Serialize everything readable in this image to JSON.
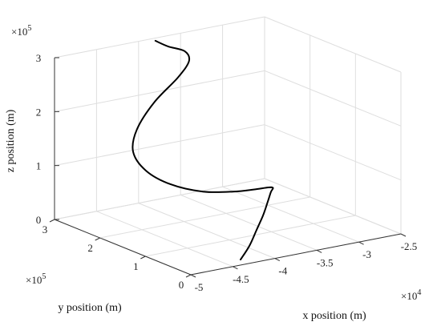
{
  "chart_data": {
    "type": "line3d",
    "xlabel": "x position (m)",
    "ylabel": "y position (m)",
    "zlabel": "z position (m)",
    "x_exponent": "×10",
    "x_exponent_power": "4",
    "y_exponent": "×10",
    "y_exponent_power": "5",
    "z_exponent": "×10",
    "z_exponent_power": "5",
    "x_ticks": [
      "-5",
      "-4.5",
      "-4",
      "-3.5",
      "-3",
      "-2.5"
    ],
    "y_ticks": [
      "0",
      "1",
      "2",
      "3"
    ],
    "z_ticks": [
      "0",
      "1",
      "2",
      "3"
    ],
    "xlim": [
      -50000,
      -25000
    ],
    "ylim": [
      0,
      300000
    ],
    "zlim": [
      0,
      300000
    ],
    "grid": true,
    "series": [
      {
        "color": "#000000",
        "x": [
          -43000,
          -39500,
          -36000,
          -32500,
          -29500,
          -27500,
          -26700,
          -27200,
          -29000,
          -31500,
          -35000,
          -38500,
          -41000,
          -42000,
          -41000,
          -38500,
          -35500,
          -34000,
          -34500,
          -36500,
          -38000
        ],
        "y": [
          20000,
          65000,
          115000,
          165000,
          210000,
          240000,
          250000,
          251000,
          250000,
          249000,
          251000,
          257000,
          265000,
          275000,
          285000,
          293000,
          297000,
          300000,
          300000,
          300000,
          300000
        ],
        "z": [
          0,
          0,
          0,
          0,
          1000,
          3000,
          5000,
          7000,
          9000,
          13000,
          23000,
          45000,
          75000,
          110000,
          145000,
          185000,
          220000,
          245000,
          265000,
          280000,
          295000
        ]
      }
    ]
  }
}
